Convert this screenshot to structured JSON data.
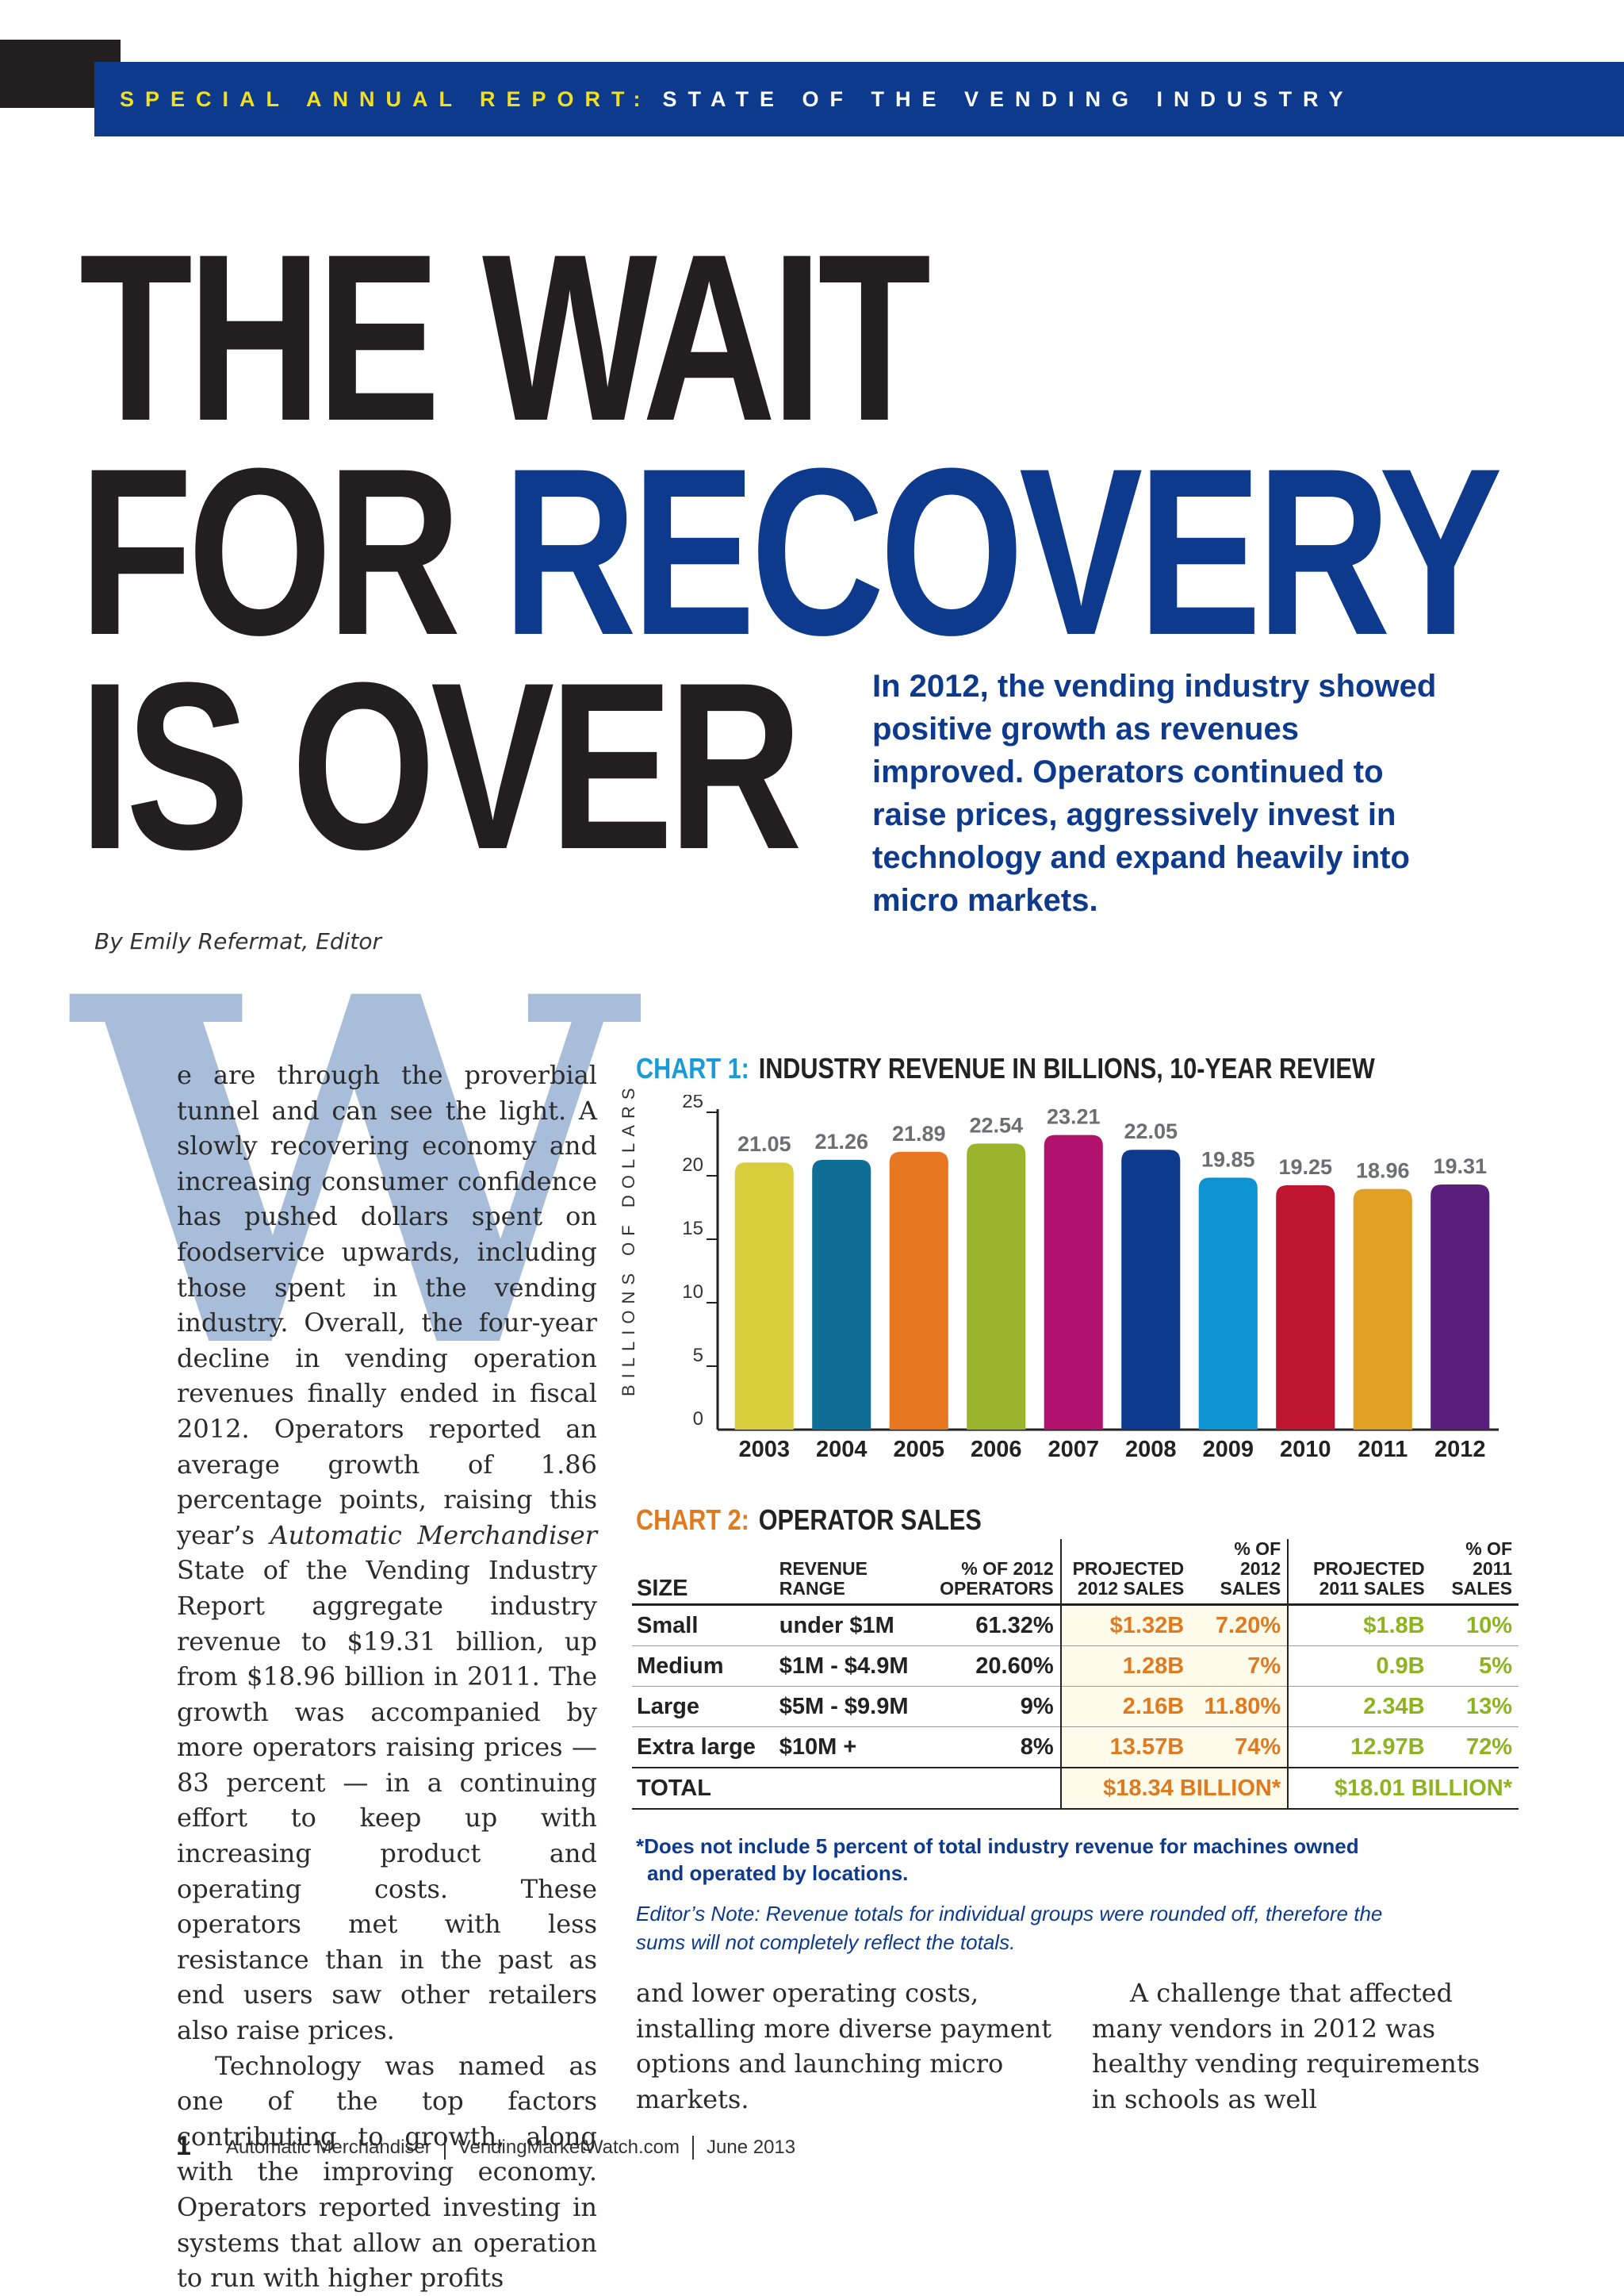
{
  "banner": {
    "prefix": "SPECIAL ANNUAL REPORT:",
    "title": "STATE OF THE VENDING INDUSTRY"
  },
  "headline": {
    "line1": "THE WAIT",
    "line2a": "FOR ",
    "line2b": "RECOVERY",
    "line3": "IS OVER"
  },
  "dek": "In 2012, the vending industry showed positive growth as revenues improved. Operators continued to raise prices, aggressively invest in technology and expand heavily into micro markets.",
  "byline": "By Emily Refermat, Editor",
  "dropcap": "W",
  "body": {
    "p1_start": "e are through the proverbial tunnel and can see the light. A slowly recovering economy and increasing consumer confidence has pushed dollars spent on foodservice upwards, including those spent in the vending industry. Overall, the four-year decline in vending operation revenues finally ended in fiscal 2012. Operators reported an average growth of 1.86 percentage points, raising this year’s ",
    "p1_italic": "Automatic Merchandiser",
    "p1_end": " State of the Vending Industry Report aggregate industry revenue to $19.31 billion, up from $18.96 billion in 2011. The growth was accompanied by more operators raising prices — 83 percent — in a continuing effort to keep up with increasing product and operating costs. These operators met with less resistance than in the past as end users saw other retailers also raise prices.",
    "p2": "Technology was named as one of the top factors contributing to growth, along with the improving economy. Operators reported investing in systems that allow an operation to run with higher profits",
    "col2": "and lower operating costs, installing more diverse payment options and launching micro markets.",
    "col3": "A challenge that affected many vendors in 2012 was healthy vending requirements in schools as well"
  },
  "chart1": {
    "label": "CHART 1:",
    "title": "INDUSTRY REVENUE IN BILLIONS, 10-YEAR REVIEW"
  },
  "chart_data": {
    "type": "bar",
    "title": "INDUSTRY REVENUE IN BILLIONS, 10-YEAR REVIEW",
    "xlabel": "",
    "ylabel": "BILLIONS OF DOLLARS",
    "categories": [
      "2003",
      "2004",
      "2005",
      "2006",
      "2007",
      "2008",
      "2009",
      "2010",
      "2011",
      "2012"
    ],
    "values": [
      21.05,
      21.26,
      21.89,
      22.54,
      23.21,
      22.05,
      19.85,
      19.25,
      18.96,
      19.31
    ],
    "value_labels": [
      "21.05",
      "21.26",
      "21.89",
      "22.54",
      "23.21",
      "22.05",
      "19.85",
      "19.25",
      "18.96",
      "19.31"
    ],
    "colors": [
      "#d8cd3c",
      "#0e6e96",
      "#e87722",
      "#9ab52b",
      "#b0126e",
      "#0d3a8c",
      "#0d93d2",
      "#be1530",
      "#e0a024",
      "#5a1f7d"
    ],
    "yticks": [
      "0",
      "5",
      "10",
      "15",
      "20",
      "25"
    ],
    "ylim": [
      0,
      25
    ],
    "grid": false
  },
  "chart2": {
    "label": "CHART 2:",
    "title": "OPERATOR SALES"
  },
  "table": {
    "headers": {
      "size": "SIZE",
      "range": "REVENUE RANGE",
      "pct_ops": "% OF 2012 OPERATORS",
      "proj2012": "PROJECTED 2012 SALES",
      "pct2012": "% OF 2012 SALES",
      "proj2011": "PROJECTED 2011 SALES",
      "pct2011": "% OF 2011 SALES"
    },
    "rows": [
      {
        "size": "Small",
        "range": "under $1M",
        "pct_ops": "61.32%",
        "proj2012": "$1.32B",
        "pct2012": "7.20%",
        "proj2011": "$1.8B",
        "pct2011": "10%"
      },
      {
        "size": "Medium",
        "range": "$1M - $4.9M",
        "pct_ops": "20.60%",
        "proj2012": "1.28B",
        "pct2012": "7%",
        "proj2011": "0.9B",
        "pct2011": "5%"
      },
      {
        "size": "Large",
        "range": "$5M - $9.9M",
        "pct_ops": "9%",
        "proj2012": "2.16B",
        "pct2012": "11.80%",
        "proj2011": "2.34B",
        "pct2011": "13%"
      },
      {
        "size": "Extra large",
        "range": "$10M +",
        "pct_ops": "8%",
        "proj2012": "13.57B",
        "pct2012": "74%",
        "proj2011": "12.97B",
        "pct2011": "72%"
      }
    ],
    "total": {
      "label": "TOTAL",
      "proj2012": "$18.34 BILLION*",
      "proj2011": "$18.01 BILLION*"
    }
  },
  "footnote": {
    "line1": "*Does not include 5 percent of total industry revenue for machines owned",
    "line2": "and operated by locations."
  },
  "editors_note": "Editor’s Note: Revenue totals for individual groups were rounded off, therefore the sums will not completely reflect the totals.",
  "footer": {
    "page": "1",
    "publication": "Automatic Merchandiser",
    "site": "VendingMarketWatch.com",
    "date": "June 2013"
  }
}
